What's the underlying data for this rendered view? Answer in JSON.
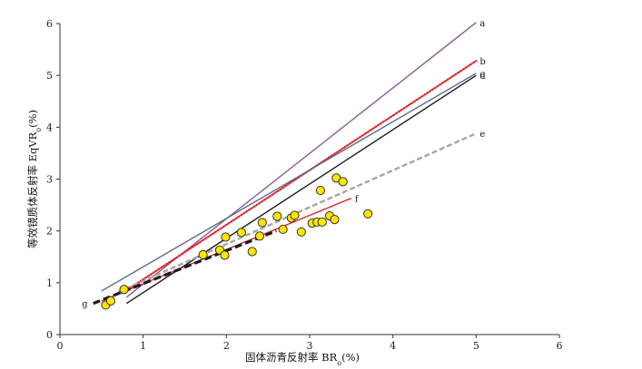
{
  "chart_data": {
    "type": "scatter",
    "xlabel": "固体沥青反射率 BR",
    "xlabel_sub": "o",
    "xlabel_unit": "(%)",
    "ylabel": "等效镜质体反射率 EqVR",
    "ylabel_sub": "o",
    "ylabel_unit": "(%)",
    "xlim": [
      0,
      6
    ],
    "ylim": [
      0,
      6
    ],
    "xticks": [
      "0",
      "1",
      "2",
      "3",
      "4",
      "5",
      "6"
    ],
    "yticks": [
      "0",
      "1",
      "2",
      "3",
      "4",
      "5",
      "6"
    ],
    "grid": false,
    "lines": [
      {
        "label": "a",
        "color": "#8f5a8f",
        "style": "solid",
        "points": [
          [
            0.8,
            0.72
          ],
          [
            5.0,
            6.02
          ]
        ]
      },
      {
        "label": "b",
        "color": "#e0242c",
        "style": "dotted",
        "points": [
          [
            0.75,
            0.8
          ],
          [
            5.0,
            5.28
          ]
        ]
      },
      {
        "label": "c",
        "color": "#5a6c8e",
        "style": "solid",
        "points": [
          [
            0.5,
            0.84
          ],
          [
            5.0,
            5.04
          ]
        ]
      },
      {
        "label": "d",
        "color": "#1a1a1a",
        "style": "solid",
        "points": [
          [
            0.8,
            0.6
          ],
          [
            5.0,
            5.0
          ]
        ]
      },
      {
        "label": "e",
        "color": "#a6a6a6",
        "style": "dashed",
        "points": [
          [
            0.7,
            0.82
          ],
          [
            5.0,
            3.88
          ]
        ]
      },
      {
        "label": "f",
        "color": "#e0242c",
        "style": "solid",
        "points": [
          [
            0.5,
            0.65
          ],
          [
            3.5,
            2.63
          ]
        ]
      },
      {
        "label": "g",
        "color": "#1a1a1a",
        "style": "heavy-dashed",
        "points": [
          [
            0.4,
            0.6
          ],
          [
            2.6,
            2.0
          ]
        ]
      }
    ],
    "points": {
      "color": "#ffe500",
      "stroke": "#333333",
      "x": [
        0.55,
        0.61,
        0.77,
        1.72,
        1.92,
        1.99,
        1.98,
        2.18,
        2.31,
        2.4,
        2.43,
        2.61,
        2.68,
        2.78,
        2.82,
        2.9,
        3.03,
        3.09,
        3.13,
        3.15,
        3.24,
        3.3,
        3.32,
        3.4,
        3.7
      ],
      "y": [
        0.57,
        0.65,
        0.87,
        1.54,
        1.63,
        1.88,
        1.53,
        1.97,
        1.6,
        1.9,
        2.16,
        2.28,
        2.03,
        2.25,
        2.3,
        1.98,
        2.15,
        2.17,
        2.78,
        2.17,
        2.29,
        2.22,
        3.02,
        2.95,
        2.33
      ]
    }
  }
}
